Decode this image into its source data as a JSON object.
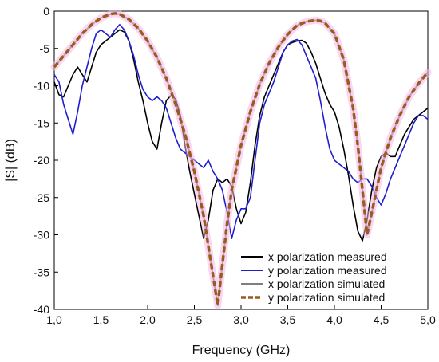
{
  "chart_data": {
    "type": "line",
    "xlabel": "Frequency (GHz)",
    "ylabel": "|S| (dB)",
    "xlim": [
      1.0,
      5.0
    ],
    "ylim": [
      -40,
      0
    ],
    "xticks": [
      1.0,
      1.5,
      2.0,
      2.5,
      3.0,
      3.5,
      4.0,
      4.5,
      5.0
    ],
    "xtick_labels": [
      "1,0",
      "1,5",
      "2,0",
      "2,5",
      "3,0",
      "3,5",
      "4,0",
      "4,5",
      "5,0"
    ],
    "yticks": [
      0,
      -5,
      -10,
      -15,
      -20,
      -25,
      -30,
      -35,
      -40
    ],
    "ytick_labels": [
      "0",
      "-5",
      "-10",
      "-15",
      "-20",
      "-25",
      "-30",
      "-35",
      "-40"
    ],
    "grid": false,
    "legend_position": "bottom-right",
    "series": [
      {
        "name": "x polarization measured",
        "color": "#000000",
        "style": "solid",
        "x": [
          1.0,
          1.05,
          1.1,
          1.15,
          1.2,
          1.25,
          1.3,
          1.35,
          1.4,
          1.45,
          1.5,
          1.55,
          1.6,
          1.65,
          1.7,
          1.75,
          1.8,
          1.85,
          1.9,
          1.95,
          2.0,
          2.05,
          2.1,
          2.15,
          2.2,
          2.25,
          2.3,
          2.35,
          2.4,
          2.45,
          2.5,
          2.55,
          2.6,
          2.65,
          2.7,
          2.75,
          2.8,
          2.85,
          2.9,
          2.95,
          3.0,
          3.05,
          3.1,
          3.15,
          3.2,
          3.25,
          3.3,
          3.35,
          3.4,
          3.45,
          3.5,
          3.55,
          3.6,
          3.65,
          3.7,
          3.75,
          3.8,
          3.85,
          3.9,
          3.95,
          4.0,
          4.05,
          4.1,
          4.15,
          4.2,
          4.25,
          4.3,
          4.35,
          4.4,
          4.45,
          4.5,
          4.55,
          4.6,
          4.65,
          4.7,
          4.75,
          4.8,
          4.85,
          4.9,
          4.95,
          5.0
        ],
        "y": [
          -9.5,
          -11.2,
          -11.5,
          -10.0,
          -8.5,
          -7.5,
          -8.5,
          -9.5,
          -7.5,
          -5.5,
          -4.5,
          -4.0,
          -3.5,
          -3.0,
          -2.5,
          -2.8,
          -4.0,
          -6.5,
          -9.5,
          -12.0,
          -15.0,
          -17.5,
          -18.5,
          -15.0,
          -12.0,
          -11.3,
          -11.8,
          -14.0,
          -18.0,
          -21.5,
          -24.5,
          -27.5,
          -30.5,
          -28.0,
          -24.0,
          -22.5,
          -23.0,
          -22.5,
          -23.5,
          -26.5,
          -28.5,
          -27.0,
          -23.0,
          -18.0,
          -14.0,
          -11.5,
          -10.0,
          -8.5,
          -7.0,
          -5.5,
          -4.5,
          -4.2,
          -4.0,
          -3.9,
          -4.3,
          -5.5,
          -7.0,
          -9.0,
          -11.0,
          -12.5,
          -13.5,
          -15.5,
          -18.5,
          -22.0,
          -26.0,
          -29.5,
          -30.8,
          -28.0,
          -24.0,
          -21.0,
          -19.5,
          -19.0,
          -19.5,
          -19.5,
          -18.0,
          -16.5,
          -15.5,
          -14.5,
          -14.0,
          -13.5,
          -13.0
        ]
      },
      {
        "name": "y polarization measured",
        "color": "#1f1fd1",
        "style": "solid",
        "x": [
          1.0,
          1.05,
          1.1,
          1.15,
          1.2,
          1.25,
          1.3,
          1.35,
          1.4,
          1.45,
          1.5,
          1.55,
          1.6,
          1.65,
          1.7,
          1.75,
          1.8,
          1.85,
          1.9,
          1.95,
          2.0,
          2.05,
          2.1,
          2.15,
          2.2,
          2.25,
          2.3,
          2.35,
          2.4,
          2.45,
          2.5,
          2.55,
          2.6,
          2.65,
          2.7,
          2.75,
          2.8,
          2.85,
          2.9,
          2.95,
          3.0,
          3.05,
          3.1,
          3.15,
          3.2,
          3.25,
          3.3,
          3.35,
          3.4,
          3.45,
          3.5,
          3.55,
          3.6,
          3.65,
          3.7,
          3.75,
          3.8,
          3.85,
          3.9,
          3.95,
          4.0,
          4.05,
          4.1,
          4.15,
          4.2,
          4.25,
          4.3,
          4.35,
          4.4,
          4.45,
          4.5,
          4.55,
          4.6,
          4.65,
          4.7,
          4.75,
          4.8,
          4.85,
          4.9,
          4.95,
          5.0
        ],
        "y": [
          -8.5,
          -9.5,
          -12.5,
          -14.5,
          -16.5,
          -13.5,
          -10.0,
          -7.5,
          -5.0,
          -3.0,
          -2.5,
          -3.0,
          -3.5,
          -2.5,
          -1.8,
          -2.5,
          -4.0,
          -6.0,
          -8.5,
          -10.5,
          -11.5,
          -12.0,
          -11.5,
          -12.0,
          -13.0,
          -15.0,
          -17.0,
          -18.5,
          -19.0,
          -19.5,
          -20.0,
          -20.5,
          -21.0,
          -20.0,
          -21.5,
          -22.5,
          -24.0,
          -27.0,
          -30.5,
          -28.0,
          -26.5,
          -26.5,
          -25.0,
          -20.0,
          -15.0,
          -12.5,
          -11.0,
          -9.5,
          -7.5,
          -5.5,
          -4.5,
          -4.0,
          -3.8,
          -4.5,
          -6.0,
          -7.5,
          -9.0,
          -12.0,
          -15.5,
          -18.5,
          -20.0,
          -20.5,
          -21.0,
          -21.5,
          -22.5,
          -23.0,
          -22.5,
          -22.5,
          -23.5,
          -25.0,
          -26.0,
          -24.5,
          -22.5,
          -21.0,
          -19.5,
          -18.0,
          -16.5,
          -15.0,
          -14.0,
          -14.0,
          -14.5
        ]
      },
      {
        "name": "x polarization simulated",
        "color": "#7f7f7f",
        "style": "solid",
        "x": [
          1.0,
          1.1,
          1.2,
          1.3,
          1.4,
          1.5,
          1.6,
          1.65,
          1.7,
          1.8,
          1.9,
          2.0,
          2.1,
          2.2,
          2.3,
          2.4,
          2.5,
          2.6,
          2.65,
          2.7,
          2.75,
          2.8,
          2.85,
          2.9,
          3.0,
          3.1,
          3.2,
          3.3,
          3.4,
          3.5,
          3.6,
          3.7,
          3.8,
          3.85,
          3.9,
          4.0,
          4.1,
          4.2,
          4.25,
          4.3,
          4.35,
          4.4,
          4.5,
          4.6,
          4.7,
          4.8,
          4.9,
          5.0
        ],
        "y": [
          -7.5,
          -6.0,
          -4.5,
          -3.0,
          -1.8,
          -0.9,
          -0.4,
          -0.3,
          -0.4,
          -1.1,
          -2.3,
          -4.0,
          -6.2,
          -9.0,
          -12.5,
          -16.5,
          -21.5,
          -27.5,
          -31.5,
          -35.5,
          -39.5,
          -34.0,
          -28.5,
          -24.0,
          -18.0,
          -13.5,
          -9.8,
          -7.0,
          -4.8,
          -3.1,
          -1.9,
          -1.4,
          -1.2,
          -1.3,
          -1.6,
          -3.0,
          -6.5,
          -13.0,
          -18.0,
          -24.0,
          -30.0,
          -27.0,
          -21.0,
          -17.0,
          -14.0,
          -11.5,
          -9.7,
          -8.2
        ]
      },
      {
        "name": "y polarization simulated",
        "color": "#9b5a1e",
        "style": "dashed",
        "x": [
          1.0,
          1.1,
          1.2,
          1.3,
          1.4,
          1.5,
          1.6,
          1.65,
          1.7,
          1.8,
          1.9,
          2.0,
          2.1,
          2.2,
          2.3,
          2.4,
          2.5,
          2.6,
          2.65,
          2.7,
          2.75,
          2.8,
          2.85,
          2.9,
          3.0,
          3.1,
          3.2,
          3.3,
          3.4,
          3.5,
          3.6,
          3.7,
          3.8,
          3.85,
          3.9,
          4.0,
          4.1,
          4.2,
          4.25,
          4.3,
          4.35,
          4.4,
          4.5,
          4.6,
          4.7,
          4.8,
          4.9,
          5.0
        ],
        "y": [
          -7.5,
          -6.0,
          -4.5,
          -3.0,
          -1.8,
          -0.9,
          -0.4,
          -0.3,
          -0.4,
          -1.1,
          -2.3,
          -4.0,
          -6.2,
          -9.0,
          -12.5,
          -16.5,
          -21.5,
          -27.5,
          -31.5,
          -35.5,
          -39.5,
          -34.0,
          -28.5,
          -24.0,
          -18.0,
          -13.5,
          -9.8,
          -7.0,
          -4.8,
          -3.1,
          -1.9,
          -1.4,
          -1.2,
          -1.3,
          -1.6,
          -3.0,
          -6.5,
          -13.0,
          -18.0,
          -24.0,
          -30.0,
          -27.0,
          -21.0,
          -17.0,
          -14.0,
          -11.5,
          -9.7,
          -8.2
        ]
      }
    ]
  }
}
